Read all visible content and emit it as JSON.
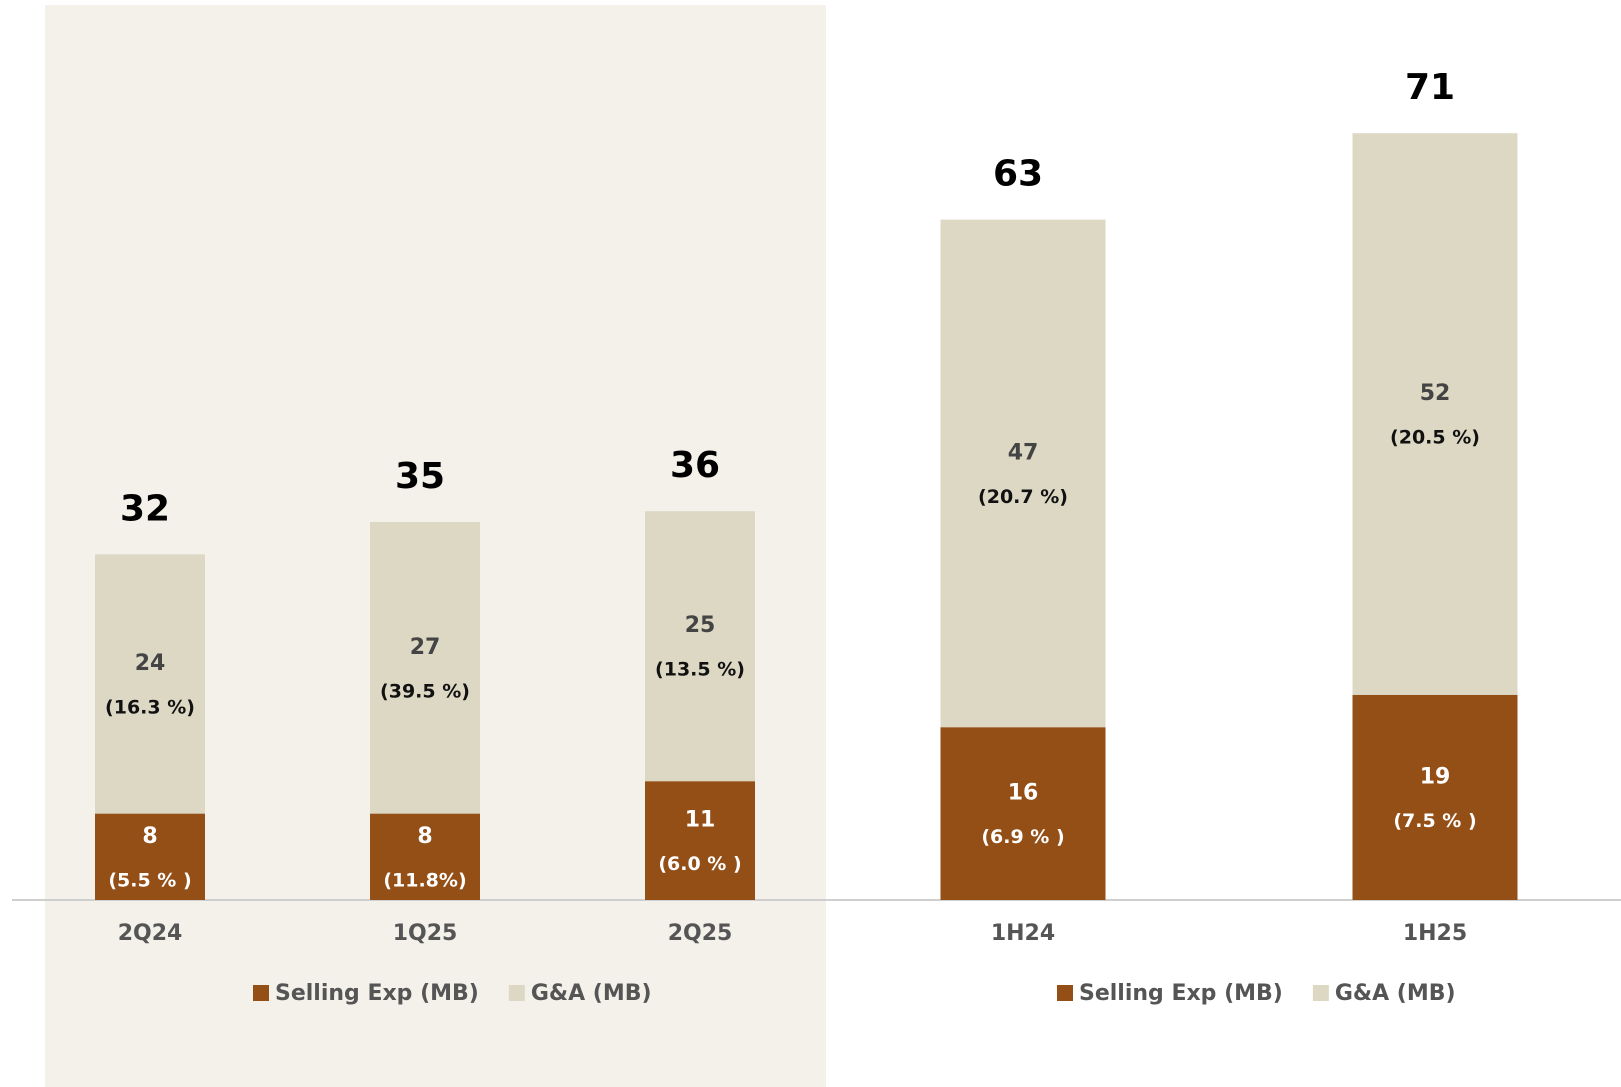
{
  "chart_data": [
    {
      "type": "bar",
      "stacked": true,
      "categories": [
        "2Q24",
        "1Q25",
        "2Q25"
      ],
      "totals": [
        32,
        35,
        36
      ],
      "series": [
        {
          "name": "Selling Exp (MB)",
          "color": "#944f17",
          "values": [
            8,
            8,
            11
          ],
          "annotations": [
            "(5.5 % )",
            "(11.8%)",
            "(6.0 % )"
          ]
        },
        {
          "name": "G&A (MB)",
          "color": "#ddd8c4",
          "values": [
            24,
            27,
            25
          ],
          "annotations": [
            "(16.3 %)",
            "(39.5 %)",
            "(13.5 %)"
          ]
        }
      ]
    },
    {
      "type": "bar",
      "stacked": true,
      "categories": [
        "1H24",
        "1H25"
      ],
      "totals": [
        63,
        71
      ],
      "series": [
        {
          "name": "Selling Exp (MB)",
          "color": "#944f17",
          "values": [
            16,
            19
          ],
          "annotations": [
            "(6.9  % )",
            "(7.5 % )"
          ]
        },
        {
          "name": "G&A (MB)",
          "color": "#ddd8c4",
          "values": [
            47,
            52
          ],
          "annotations": [
            "(20.7 %)",
            "(20.5 %)"
          ]
        }
      ]
    }
  ]
}
